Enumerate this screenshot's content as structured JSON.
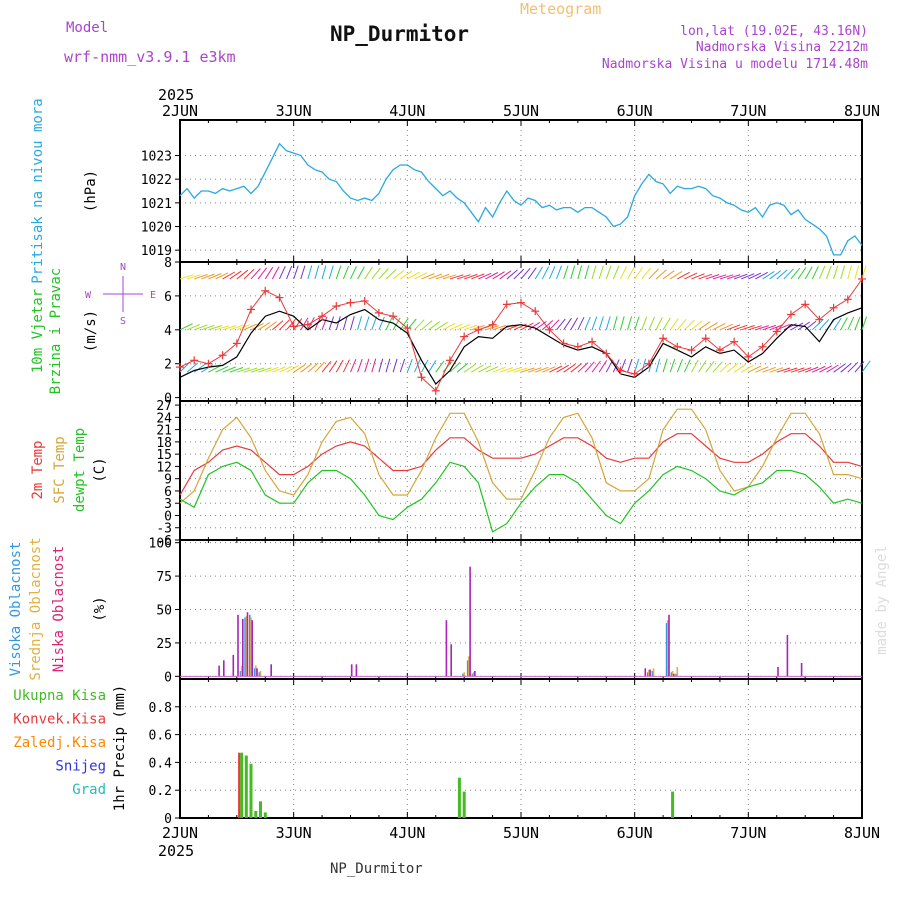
{
  "header": {
    "model_label": "Model",
    "model_name": "wrf-nmm_v3.9.1  e3km",
    "meteogram": "Meteogram",
    "station": "NP_Durmitor",
    "lonlat": "lon,lat (19.02E, 43.16N)",
    "altitude": "Nadmorska Visina 2212m",
    "model_altitude": "Nadmorska Visina u modelu 1714.48m",
    "footer_station": "NP_Durmitor",
    "watermark": "made by Angel"
  },
  "colors": {
    "pressure": "#29a9e0",
    "wind_speed": "#000000",
    "wind_gust": "#e83a3a",
    "temp2m": "#e83a3a",
    "sfc_temp": "#d4a63a",
    "dewpt": "#22c422",
    "high_cloud": "#3399dd",
    "mid_cloud": "#e0b040",
    "low_cloud": "#aa22bb",
    "total_precip": "#44bb22",
    "conv_precip": "#e83a3a",
    "frz_precip": "#ff8800",
    "snow": "#3333dd",
    "graupel": "#22bbbb",
    "compass": "#aa44cc"
  },
  "chart_data": [
    {
      "type": "line",
      "id": "pressure",
      "ylabel_title": "Pritisak na nivou mora",
      "ylabel_unit": "(hPa)",
      "ylim": [
        1018.5,
        1024.5
      ],
      "yticks": [
        1019,
        1020,
        1021,
        1022,
        1023
      ],
      "xlim_hours": [
        0,
        144
      ],
      "x_ticks": [
        "2JUN",
        "3JUN",
        "4JUN",
        "5JUN",
        "6JUN",
        "7JUN",
        "8JUN"
      ],
      "x_year": "2025",
      "series": [
        {
          "name": "Pressure",
          "color": "#29a9e0",
          "x": [
            0,
            1.5,
            3,
            4.5,
            6,
            7.5,
            9,
            10.5,
            12,
            13.5,
            15,
            16.5,
            18,
            19.5,
            21,
            22.5,
            24,
            25.5,
            27,
            28.5,
            30,
            31.5,
            33,
            34.5,
            36,
            37.5,
            39,
            40.5,
            42,
            43.5,
            45,
            46.5,
            48,
            49.5,
            51,
            52.5,
            54,
            55.5,
            57,
            58.5,
            60,
            61.5,
            63,
            64.5,
            66,
            67.5,
            69,
            70.5,
            72,
            73.5,
            75,
            76.5,
            78,
            79.5,
            81,
            82.5,
            84,
            85.5,
            87,
            88.5,
            90,
            91.5,
            93,
            94.5,
            96,
            97.5,
            99,
            100.5,
            102,
            103.5,
            105,
            106.5,
            108,
            109.5,
            111,
            112.5,
            114,
            115.5,
            117,
            118.5,
            120,
            121.5,
            123,
            124.5,
            126,
            127.5,
            129,
            130.5,
            132,
            133.5,
            135,
            136.5,
            138,
            139.5,
            141,
            142.5,
            144
          ],
          "values": [
            1021.3,
            1021.6,
            1021.2,
            1021.5,
            1021.5,
            1021.4,
            1021.6,
            1021.5,
            1021.6,
            1021.7,
            1021.4,
            1021.7,
            1022.3,
            1022.9,
            1023.5,
            1023.2,
            1023.1,
            1023.0,
            1022.6,
            1022.4,
            1022.3,
            1022.0,
            1021.9,
            1021.5,
            1021.2,
            1021.1,
            1021.2,
            1021.1,
            1021.4,
            1022.0,
            1022.4,
            1022.6,
            1022.6,
            1022.4,
            1022.3,
            1021.9,
            1021.6,
            1021.3,
            1021.5,
            1021.2,
            1021.0,
            1020.6,
            1020.2,
            1020.8,
            1020.4,
            1021.0,
            1021.5,
            1021.1,
            1020.9,
            1021.2,
            1021.1,
            1020.8,
            1020.9,
            1020.7,
            1020.8,
            1020.8,
            1020.6,
            1020.8,
            1020.8,
            1020.6,
            1020.4,
            1020.0,
            1020.1,
            1020.4,
            1021.3,
            1021.8,
            1022.2,
            1021.9,
            1021.8,
            1021.4,
            1021.7,
            1021.6,
            1021.6,
            1021.7,
            1021.6,
            1021.3,
            1021.2,
            1021.0,
            1020.9,
            1020.7,
            1020.6,
            1020.8,
            1020.4,
            1020.9,
            1021.0,
            1020.9,
            1020.5,
            1020.7,
            1020.3,
            1020.1,
            1019.9,
            1019.6,
            1018.8,
            1018.8,
            1019.4,
            1019.6,
            1019.2
          ]
        }
      ]
    },
    {
      "type": "line",
      "id": "wind",
      "ylabel_title": "10m Vjetar",
      "ylabel_title2": "Brzina i Pravac",
      "ylabel_unit": "(m/s)",
      "compass_top": "N",
      "compass_bottom": "S",
      "compass_left": "W",
      "compass_right": "E",
      "ylim": [
        -0.2,
        8.0
      ],
      "yticks": [
        0,
        2,
        4,
        6,
        8
      ],
      "series": [
        {
          "name": "Wind speed",
          "color": "#000000",
          "x": [
            0,
            3,
            6,
            9,
            12,
            15,
            18,
            21,
            24,
            27,
            30,
            33,
            36,
            39,
            42,
            45,
            48,
            51,
            54,
            57,
            60,
            63,
            66,
            69,
            72,
            75,
            78,
            81,
            84,
            87,
            90,
            93,
            96,
            99,
            102,
            105,
            108,
            111,
            114,
            117,
            120,
            123,
            126,
            129,
            132,
            135,
            138,
            141,
            144
          ],
          "values": [
            1.2,
            1.6,
            1.8,
            1.9,
            2.4,
            3.8,
            4.8,
            5.1,
            4.8,
            4.0,
            4.6,
            4.4,
            4.9,
            5.2,
            4.6,
            4.4,
            3.8,
            2.2,
            0.8,
            1.6,
            3.0,
            3.6,
            3.5,
            4.2,
            4.3,
            4.1,
            3.6,
            3.1,
            2.8,
            3.0,
            2.6,
            1.4,
            1.2,
            1.8,
            3.2,
            2.8,
            2.4,
            3.0,
            2.6,
            2.8,
            2.1,
            2.6,
            3.5,
            4.3,
            4.2,
            3.3,
            4.6,
            5.0,
            5.3
          ]
        },
        {
          "name": "Wind gust",
          "color": "#e83a3a",
          "x": [
            0,
            3,
            6,
            9,
            12,
            15,
            18,
            21,
            24,
            27,
            30,
            33,
            36,
            39,
            42,
            45,
            48,
            51,
            54,
            57,
            60,
            63,
            66,
            69,
            72,
            75,
            78,
            81,
            84,
            87,
            90,
            93,
            96,
            99,
            102,
            105,
            108,
            111,
            114,
            117,
            120,
            123,
            126,
            129,
            132,
            135,
            138,
            141,
            144
          ],
          "values": [
            1.8,
            2.2,
            2.0,
            2.5,
            3.2,
            5.2,
            6.3,
            5.9,
            4.2,
            4.3,
            4.8,
            5.4,
            5.6,
            5.7,
            5.0,
            4.8,
            4.1,
            1.2,
            0.4,
            2.2,
            3.6,
            4.0,
            4.3,
            5.5,
            5.6,
            5.1,
            4.0,
            3.2,
            3.0,
            3.3,
            2.6,
            1.6,
            1.4,
            2.0,
            3.5,
            3.0,
            2.8,
            3.5,
            2.8,
            3.3,
            2.4,
            3.0,
            3.9,
            4.9,
            5.5,
            4.6,
            5.3,
            5.8,
            7.0
          ]
        }
      ],
      "wind_barb_rows": [
        1.5,
        4.0,
        7.0
      ]
    },
    {
      "type": "line",
      "id": "temperature",
      "ylabel_title": "2m Temp",
      "ylabel_title2": "SFC Temp",
      "ylabel_title3": "dewpt Temp",
      "ylabel_unit": "(C)",
      "ylim": [
        -6,
        28
      ],
      "yticks": [
        -6,
        -3,
        0,
        3,
        6,
        9,
        12,
        15,
        18,
        21,
        24,
        27
      ],
      "series": [
        {
          "name": "2m Temp",
          "color": "#e83a3a",
          "x": [
            0,
            3,
            6,
            9,
            12,
            15,
            18,
            21,
            24,
            27,
            30,
            33,
            36,
            39,
            42,
            45,
            48,
            51,
            54,
            57,
            60,
            63,
            66,
            69,
            72,
            75,
            78,
            81,
            84,
            87,
            90,
            93,
            96,
            99,
            102,
            105,
            108,
            111,
            114,
            117,
            120,
            123,
            126,
            129,
            132,
            135,
            138,
            141,
            144
          ],
          "values": [
            5,
            11,
            13,
            16,
            17,
            16,
            13,
            10,
            10,
            12,
            15,
            17,
            18,
            17,
            14,
            11,
            11,
            12,
            16,
            19,
            19,
            16,
            14,
            14,
            14,
            15,
            17,
            19,
            19,
            17,
            14,
            13,
            14,
            14,
            18,
            20,
            20,
            17,
            14,
            13,
            13,
            15,
            18,
            20,
            20,
            17,
            13,
            13,
            12
          ]
        },
        {
          "name": "SFC Temp",
          "color": "#d4a63a",
          "x": [
            0,
            3,
            6,
            9,
            12,
            15,
            18,
            21,
            24,
            27,
            30,
            33,
            36,
            39,
            42,
            45,
            48,
            51,
            54,
            57,
            60,
            63,
            66,
            69,
            72,
            75,
            78,
            81,
            84,
            87,
            90,
            93,
            96,
            99,
            102,
            105,
            108,
            111,
            114,
            117,
            120,
            123,
            126,
            129,
            132,
            135,
            138,
            141,
            144
          ],
          "values": [
            3,
            6,
            14,
            21,
            24,
            19,
            11,
            6,
            5,
            10,
            18,
            23,
            24,
            20,
            10,
            5,
            5,
            11,
            19,
            25,
            25,
            18,
            8,
            4,
            4,
            11,
            19,
            24,
            25,
            19,
            8,
            6,
            6,
            9,
            21,
            26,
            26,
            21,
            11,
            6,
            7,
            12,
            19,
            25,
            25,
            20,
            10,
            10,
            9
          ]
        },
        {
          "name": "dewpt Temp",
          "color": "#22c422",
          "x": [
            0,
            3,
            6,
            9,
            12,
            15,
            18,
            21,
            24,
            27,
            30,
            33,
            36,
            39,
            42,
            45,
            48,
            51,
            54,
            57,
            60,
            63,
            66,
            69,
            72,
            75,
            78,
            81,
            84,
            87,
            90,
            93,
            96,
            99,
            102,
            105,
            108,
            111,
            114,
            117,
            120,
            123,
            126,
            129,
            132,
            135,
            138,
            141,
            144
          ],
          "values": [
            4,
            2,
            10,
            12,
            13,
            11,
            5,
            3,
            3,
            8,
            11,
            11,
            9,
            5,
            0,
            -1,
            2,
            4,
            8,
            13,
            12,
            8,
            -4,
            -2,
            3,
            7,
            10,
            10,
            8,
            4,
            0,
            -2,
            3,
            6,
            10,
            12,
            11,
            9,
            6,
            5,
            7,
            8,
            11,
            11,
            10,
            7,
            3,
            4,
            3
          ]
        }
      ]
    },
    {
      "type": "bar",
      "id": "cloud",
      "ylabel_title": "Visoka Oblacnost",
      "ylabel_title2": "Srednja Oblacnost",
      "ylabel_title3": "Niska Oblacnost",
      "ylabel_unit": "(%)",
      "ylim": [
        -2,
        102
      ],
      "yticks": [
        0,
        25,
        50,
        75,
        100
      ],
      "series": [
        {
          "name": "Visoka",
          "color": "#3399dd",
          "x": [
            13,
            14,
            15,
            16,
            17,
            60,
            61,
            62,
            99,
            100,
            103,
            104,
            105
          ],
          "values": [
            4,
            44,
            46,
            6,
            3,
            2,
            12,
            2,
            3,
            4,
            40,
            3,
            2
          ]
        },
        {
          "name": "Srednja",
          "color": "#e0b040",
          "x": [
            13,
            14,
            15,
            16,
            17,
            60,
            61,
            62,
            99,
            100,
            103,
            104,
            105
          ],
          "values": [
            8,
            45,
            44,
            8,
            4,
            3,
            15,
            3,
            5,
            6,
            42,
            4,
            7
          ]
        },
        {
          "name": "Niska",
          "color": "#aa22bb",
          "x": [
            8,
            9,
            11,
            12,
            13,
            14,
            15,
            16,
            19,
            36,
            37,
            56,
            57,
            61,
            62,
            98,
            99,
            103,
            104,
            126,
            128,
            131
          ],
          "values": [
            8,
            12,
            16,
            46,
            43,
            48,
            42,
            6,
            9,
            9,
            9,
            42,
            24,
            82,
            4,
            6,
            5,
            46,
            2,
            7,
            31,
            10
          ]
        }
      ]
    },
    {
      "type": "bar",
      "id": "precip",
      "ylabel_title": "1hr Precip",
      "ylabel_unit": "(mm)",
      "legend": [
        "Ukupna Kisa",
        "Konvek.Kisa",
        "Zaledj.Kisa",
        "Snijeg",
        "Grad"
      ],
      "ylim": [
        0,
        1.0
      ],
      "yticks": [
        0,
        0.2,
        0.4,
        0.6,
        0.8
      ],
      "series": [
        {
          "name": "Ukupna Kisa",
          "color": "#44bb22",
          "x": [
            13,
            14,
            15,
            16,
            17,
            18,
            59,
            60,
            104
          ],
          "values": [
            0.47,
            0.45,
            0.39,
            0.05,
            0.12,
            0.04,
            0.29,
            0.19,
            0.19
          ]
        },
        {
          "name": "Konvek.Kisa",
          "color": "#e83a3a",
          "x": [
            13
          ],
          "values": [
            0.47
          ]
        }
      ]
    }
  ]
}
